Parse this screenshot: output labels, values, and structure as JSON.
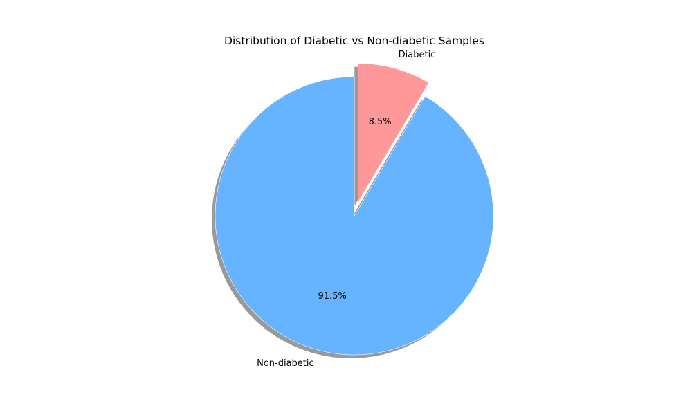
{
  "chart_data": {
    "type": "pie",
    "title": "Distribution of Diabetic vs Non-diabetic Samples",
    "slices": [
      {
        "label": "Non-diabetic",
        "value": 91.5,
        "pct_label": "91.5%",
        "color": "#66b3ff",
        "exploded": false
      },
      {
        "label": "Diabetic",
        "value": 8.5,
        "pct_label": "8.5%",
        "color": "#ff9999",
        "exploded": true
      }
    ],
    "start_angle_deg": 90,
    "shadow": true,
    "legend": "none"
  }
}
